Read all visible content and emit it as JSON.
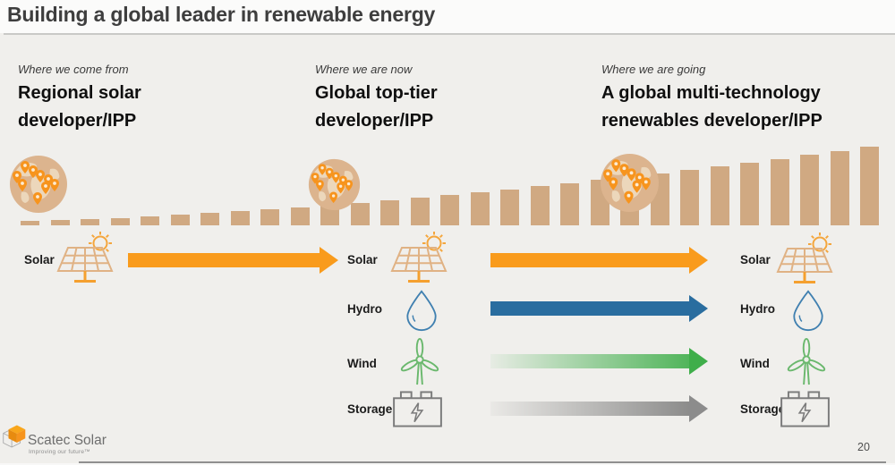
{
  "slide": {
    "title": "Building a global leader in renewable energy",
    "page_number": "20"
  },
  "columns": [
    {
      "eyebrow": "Where we come from",
      "heading_line1": "Regional solar",
      "heading_line2": "developer/IPP"
    },
    {
      "eyebrow": "Where we are now",
      "heading_line1": "Global top-tier",
      "heading_line2": "developer/IPP"
    },
    {
      "eyebrow": "Where we are going",
      "heading_line1": "A global multi-technology",
      "heading_line2": "renewables developer/IPP"
    }
  ],
  "tech": {
    "left": [
      {
        "label": "Solar",
        "icon": "solar-panel-sun-icon"
      }
    ],
    "middle": [
      {
        "label": "Solar",
        "icon": "solar-panel-sun-icon"
      },
      {
        "label": "Hydro",
        "icon": "water-drop-icon"
      },
      {
        "label": "Wind",
        "icon": "wind-turbine-icon"
      },
      {
        "label": "Storage",
        "icon": "battery-icon"
      }
    ],
    "right": [
      {
        "label": "Solar",
        "icon": "solar-panel-sun-icon"
      },
      {
        "label": "Hydro",
        "icon": "water-drop-icon"
      },
      {
        "label": "Wind",
        "icon": "wind-turbine-icon"
      },
      {
        "label": "Storage",
        "icon": "battery-icon"
      }
    ]
  },
  "arrows": {
    "solar_color": "#F99B1C",
    "hydro_color": "#2A6D9F",
    "wind_color": "#3FAE4A",
    "storage_color": "#8C8C8C",
    "wind_style": "gradient-fading-from-left",
    "storage_style": "gradient-fading-from-left"
  },
  "chart_data": {
    "type": "bar",
    "title": "",
    "description": "Decorative growth bars rising left to right behind three globe milestones; no axes, ticks or value labels are shown",
    "values": [
      5,
      6,
      7,
      8,
      10,
      12,
      14,
      16,
      18,
      20,
      22,
      25,
      28,
      31,
      34,
      37,
      40,
      44,
      47,
      51,
      54,
      58,
      62,
      66,
      70,
      74,
      79,
      83,
      88
    ],
    "bar_color": "#D0A982",
    "milestone_globes": [
      "where-we-come-from",
      "where-we-are-now",
      "where-we-are-going"
    ]
  },
  "footer": {
    "logo_name": "Scatec Solar",
    "logo_tagline": "Improving our future™",
    "logo_icon": "scatec-cube-logo"
  }
}
